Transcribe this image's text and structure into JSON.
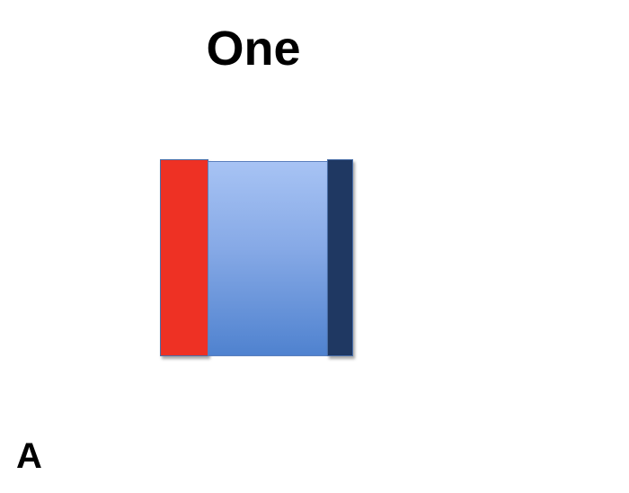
{
  "title": "One",
  "panel_label": "A",
  "colors": {
    "left_bar": "#ee3124",
    "center_block_top": "#a7c3f4",
    "center_block_bottom": "#4f82cf",
    "right_bar": "#1f3862"
  }
}
